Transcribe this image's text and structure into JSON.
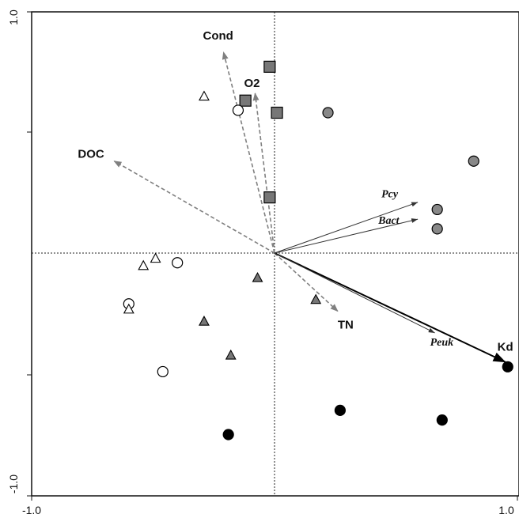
{
  "chart_data": {
    "type": "scatter",
    "title": "",
    "xlabel": "",
    "ylabel": "",
    "xlim": [
      -1.0,
      1.0
    ],
    "ylim": [
      -1.0,
      1.0
    ],
    "x_ticks": [
      "-1.0",
      "1.0"
    ],
    "y_ticks": [
      "1.0",
      "-1.0"
    ],
    "zero_lines": "dotted",
    "env_vectors": [
      {
        "label": "Cond",
        "x": -0.21,
        "y": 0.83
      },
      {
        "label": "O2",
        "x": -0.08,
        "y": 0.66
      },
      {
        "label": "DOC",
        "x": -0.66,
        "y": 0.38
      },
      {
        "label": "TN",
        "x": 0.26,
        "y": -0.24
      },
      {
        "label": "Kd",
        "x": 0.95,
        "y": -0.45
      }
    ],
    "species_vectors": [
      {
        "label": "Pcy",
        "x": 0.59,
        "y": 0.21
      },
      {
        "label": "Bact",
        "x": 0.59,
        "y": 0.14
      },
      {
        "label": "Peuk",
        "x": 0.66,
        "y": -0.33
      }
    ],
    "series": [
      {
        "marker": "square",
        "fill": "#777777",
        "points": [
          [
            -0.02,
            0.77
          ],
          [
            -0.12,
            0.63
          ],
          [
            0.01,
            0.58
          ],
          [
            -0.02,
            0.23
          ]
        ]
      },
      {
        "marker": "circle",
        "fill": "#888888",
        "points": [
          [
            0.22,
            0.58
          ],
          [
            0.82,
            0.38
          ],
          [
            0.67,
            0.18
          ],
          [
            0.67,
            0.1
          ]
        ]
      },
      {
        "marker": "circle",
        "fill": "#000000",
        "points": [
          [
            0.96,
            -0.47
          ],
          [
            0.27,
            -0.65
          ],
          [
            0.69,
            -0.69
          ],
          [
            -0.19,
            -0.75
          ]
        ]
      },
      {
        "marker": "circle",
        "fill": "#ffffff",
        "points": [
          [
            -0.15,
            0.59
          ],
          [
            -0.4,
            -0.04
          ],
          [
            -0.6,
            -0.21
          ],
          [
            -0.46,
            -0.49
          ]
        ]
      },
      {
        "marker": "triangle",
        "fill": "#ffffff",
        "points": [
          [
            -0.29,
            0.65
          ],
          [
            -0.49,
            -0.02
          ],
          [
            -0.54,
            -0.05
          ],
          [
            -0.6,
            -0.23
          ]
        ]
      },
      {
        "marker": "triangle",
        "fill": "#777777",
        "points": [
          [
            -0.07,
            -0.1
          ],
          [
            0.17,
            -0.19
          ],
          [
            -0.29,
            -0.28
          ],
          [
            -0.18,
            -0.42
          ]
        ]
      }
    ]
  }
}
